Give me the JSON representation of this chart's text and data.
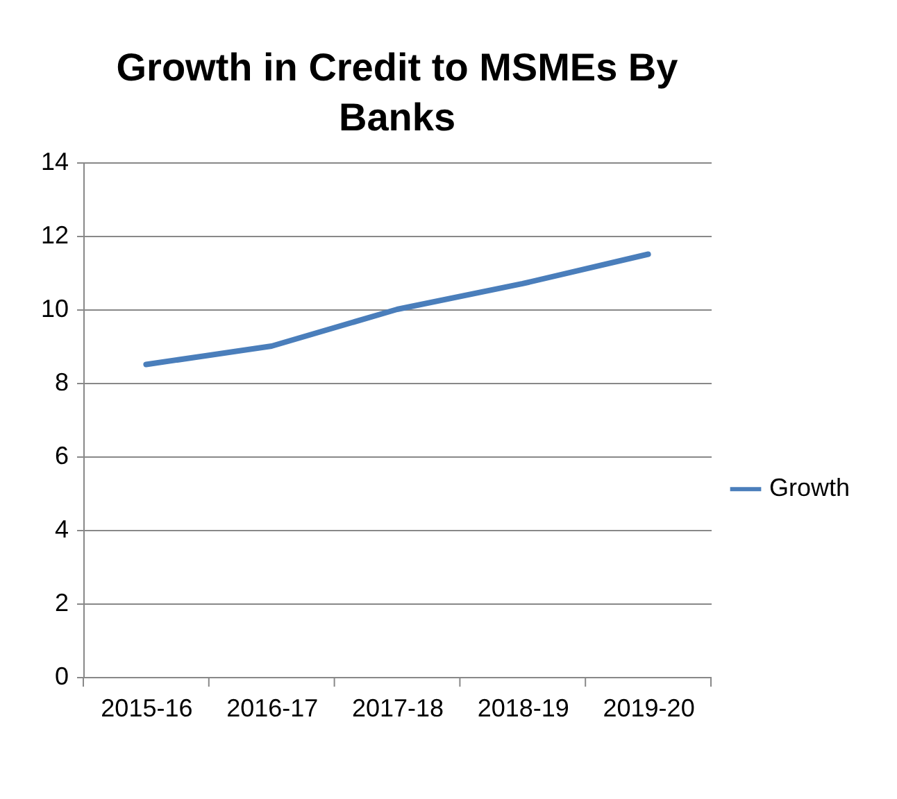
{
  "chart_data": {
    "type": "line",
    "title": "Growth in Credit to MSMEs By Banks",
    "categories": [
      "2015-16",
      "2016-17",
      "2017-18",
      "2018-19",
      "2019-20"
    ],
    "series": [
      {
        "name": "Growth",
        "color": "#4a7ebb",
        "values": [
          8.5,
          9.0,
          10.0,
          10.7,
          11.5
        ]
      }
    ],
    "ylim": [
      0,
      14
    ],
    "yticks": [
      0,
      2,
      4,
      6,
      8,
      10,
      12,
      14
    ],
    "grid": "y",
    "legend": "right",
    "marker": "none"
  }
}
